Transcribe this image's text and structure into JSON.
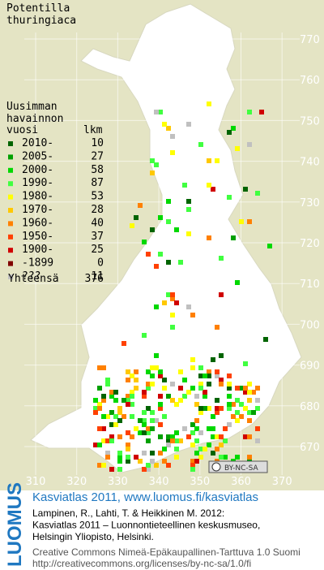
{
  "title": [
    "Potentilla",
    "thuringiaca"
  ],
  "legend": {
    "heading": [
      "Uusimman",
      "havainnon"
    ],
    "year_header": "vuosi",
    "count_header": "lkm",
    "rows": [
      {
        "label": "2010-",
        "count": 10,
        "color": "#006400"
      },
      {
        "label": "2005-",
        "count": 27,
        "color": "#00a000"
      },
      {
        "label": "2000-",
        "count": 58,
        "color": "#00d800"
      },
      {
        "label": "1990-",
        "count": 87,
        "color": "#40ff40"
      },
      {
        "label": "1980-",
        "count": 53,
        "color": "#ffff00"
      },
      {
        "label": "1970-",
        "count": 28,
        "color": "#ffc800"
      },
      {
        "label": "1960-",
        "count": 40,
        "color": "#ff8000"
      },
      {
        "label": "1950-",
        "count": 37,
        "color": "#ff4000"
      },
      {
        "label": "1900-",
        "count": 25,
        "color": "#d00000"
      },
      {
        "label": "-1899",
        "count": 0,
        "color": "#800000"
      },
      {
        "label": "???",
        "count": 11,
        "color": "#c0c0c0"
      }
    ],
    "total_label": "Yhteensä",
    "total": 376
  },
  "grid": {
    "y_labels": [
      770,
      760,
      750,
      740,
      730,
      720,
      710,
      700,
      690,
      680,
      670
    ],
    "x_labels": [
      310,
      320,
      330,
      340,
      350,
      360,
      370
    ]
  },
  "cc_badge": "BY-NC-SA",
  "footer": {
    "logo": "LUOMUS",
    "heading": "Kasviatlas 2011, www.luomus.fi/kasviatlas",
    "citation": [
      "Lampinen, R., Lahti, T. & Heikkinen M. 2012:",
      "Kasviatlas 2011 – Luonnontieteellinen keskusmuseo,",
      "Helsingin Yliopisto, Helsinki."
    ],
    "license": [
      "Creative Commons Nimeä-Epäkaupallinen-Tarttuva 1.0 Suomi",
      "http://creativecommons.org/licenses/by-nc-sa/1.0/fi"
    ]
  }
}
